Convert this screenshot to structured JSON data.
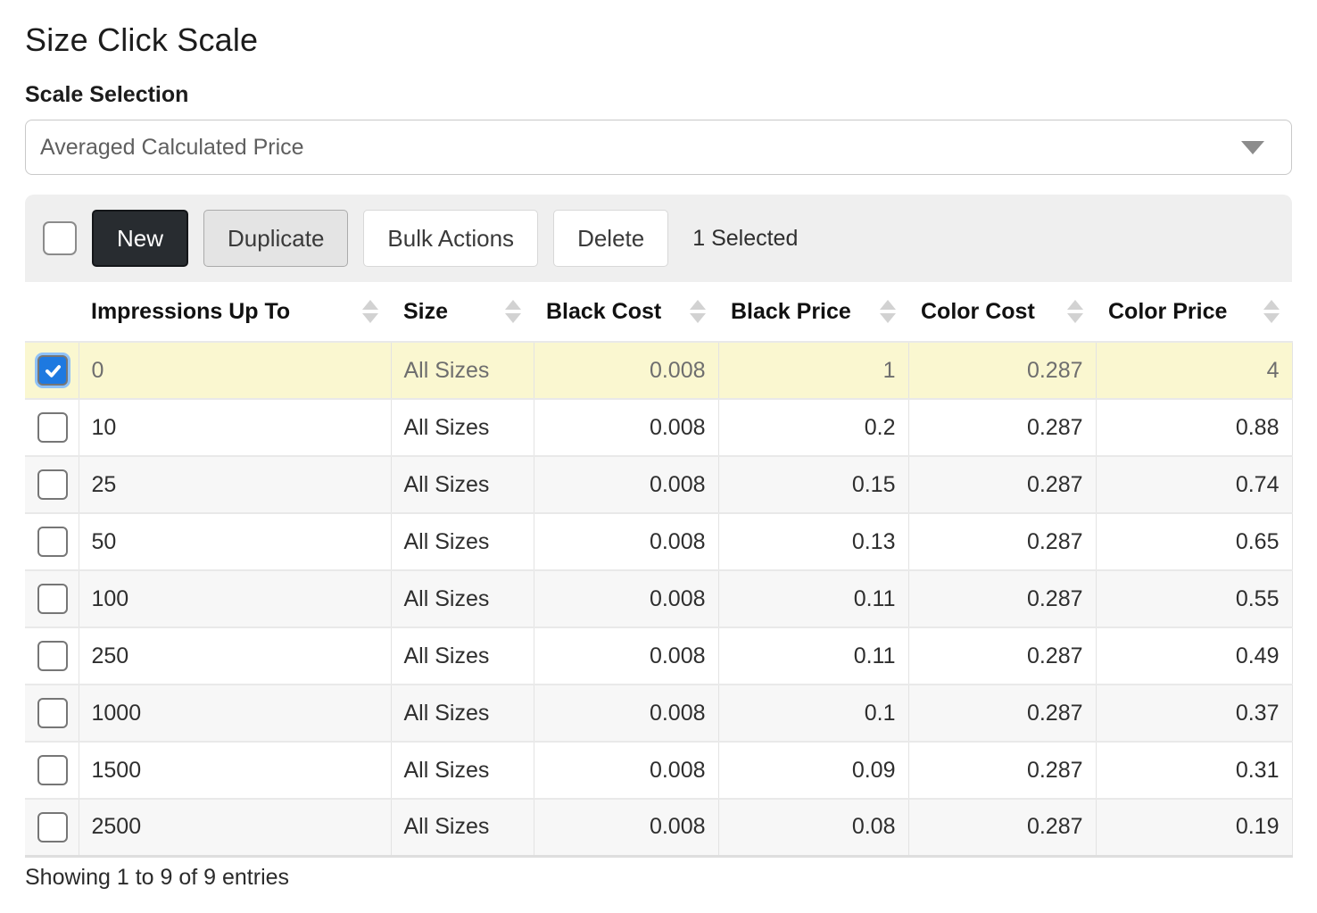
{
  "page": {
    "title": "Size Click Scale",
    "footer": "Showing 1 to 9 of 9 entries"
  },
  "scale_selection": {
    "label": "Scale Selection",
    "selected_option": "Averaged Calculated Price"
  },
  "toolbar": {
    "new_label": "New",
    "duplicate_label": "Duplicate",
    "bulk_actions_label": "Bulk Actions",
    "delete_label": "Delete",
    "selected_count": "1 Selected"
  },
  "table": {
    "columns": [
      "Impressions Up To",
      "Size",
      "Black Cost",
      "Black Price",
      "Color Cost",
      "Color Price"
    ],
    "rows": [
      {
        "selected": true,
        "checked": true,
        "impressions_up_to": "0",
        "size": "All Sizes",
        "black_cost": "0.008",
        "black_price": "1",
        "color_cost": "0.287",
        "color_price": "4"
      },
      {
        "selected": false,
        "checked": false,
        "impressions_up_to": "10",
        "size": "All Sizes",
        "black_cost": "0.008",
        "black_price": "0.2",
        "color_cost": "0.287",
        "color_price": "0.88"
      },
      {
        "selected": false,
        "checked": false,
        "impressions_up_to": "25",
        "size": "All Sizes",
        "black_cost": "0.008",
        "black_price": "0.15",
        "color_cost": "0.287",
        "color_price": "0.74"
      },
      {
        "selected": false,
        "checked": false,
        "impressions_up_to": "50",
        "size": "All Sizes",
        "black_cost": "0.008",
        "black_price": "0.13",
        "color_cost": "0.287",
        "color_price": "0.65"
      },
      {
        "selected": false,
        "checked": false,
        "impressions_up_to": "100",
        "size": "All Sizes",
        "black_cost": "0.008",
        "black_price": "0.11",
        "color_cost": "0.287",
        "color_price": "0.55"
      },
      {
        "selected": false,
        "checked": false,
        "impressions_up_to": "250",
        "size": "All Sizes",
        "black_cost": "0.008",
        "black_price": "0.11",
        "color_cost": "0.287",
        "color_price": "0.49"
      },
      {
        "selected": false,
        "checked": false,
        "impressions_up_to": "1000",
        "size": "All Sizes",
        "black_cost": "0.008",
        "black_price": "0.1",
        "color_cost": "0.287",
        "color_price": "0.37"
      },
      {
        "selected": false,
        "checked": false,
        "impressions_up_to": "1500",
        "size": "All Sizes",
        "black_cost": "0.008",
        "black_price": "0.09",
        "color_cost": "0.287",
        "color_price": "0.31"
      },
      {
        "selected": false,
        "checked": false,
        "impressions_up_to": "2500",
        "size": "All Sizes",
        "black_cost": "0.008",
        "black_price": "0.08",
        "color_cost": "0.287",
        "color_price": "0.19"
      }
    ]
  },
  "colors": {
    "selected_row_bg": "#faf7d0",
    "alt_row_bg": "#f7f7f7",
    "toolbar_bg": "#efefef",
    "dark_button_bg": "#282c30",
    "checked_checkbox_blue": "#1e79e0",
    "sort_icon_gray": "#d2d2d2"
  }
}
